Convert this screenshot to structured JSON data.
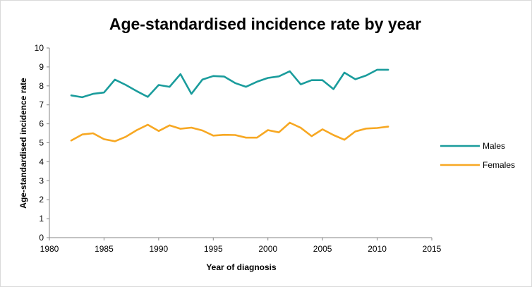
{
  "chart_data": {
    "type": "line",
    "title": "Age-standardised incidence rate by year",
    "xlabel": "Year of diagnosis",
    "ylabel": "Age-standardised incidence rate",
    "xlim": [
      1980,
      2015
    ],
    "ylim": [
      0,
      10
    ],
    "xticks": [
      1980,
      1985,
      1990,
      1995,
      2000,
      2005,
      2010,
      2015
    ],
    "yticks": [
      0,
      1,
      2,
      3,
      4,
      5,
      6,
      7,
      8,
      9,
      10
    ],
    "grid": false,
    "legend_position": "right",
    "x": [
      1982,
      1983,
      1984,
      1985,
      1986,
      1987,
      1988,
      1989,
      1990,
      1991,
      1992,
      1993,
      1994,
      1995,
      1996,
      1997,
      1998,
      1999,
      2000,
      2001,
      2002,
      2003,
      2004,
      2005,
      2006,
      2007,
      2008,
      2009,
      2010,
      2011
    ],
    "series": [
      {
        "name": "Males",
        "color": "#1a9c9c",
        "values": [
          7.5,
          7.4,
          7.58,
          7.65,
          8.33,
          8.05,
          7.72,
          7.42,
          8.05,
          7.95,
          8.62,
          7.58,
          8.33,
          8.52,
          8.49,
          8.15,
          7.95,
          8.22,
          8.42,
          8.5,
          8.77,
          8.08,
          8.3,
          8.3,
          7.83,
          8.7,
          8.35,
          8.55,
          8.85,
          8.85
        ]
      },
      {
        "name": "Females",
        "color": "#f7a823",
        "values": [
          5.12,
          5.44,
          5.5,
          5.19,
          5.08,
          5.32,
          5.67,
          5.95,
          5.62,
          5.92,
          5.74,
          5.8,
          5.65,
          5.38,
          5.42,
          5.41,
          5.27,
          5.27,
          5.67,
          5.55,
          6.06,
          5.79,
          5.35,
          5.71,
          5.41,
          5.16,
          5.6,
          5.75,
          5.78,
          5.85
        ]
      }
    ]
  }
}
